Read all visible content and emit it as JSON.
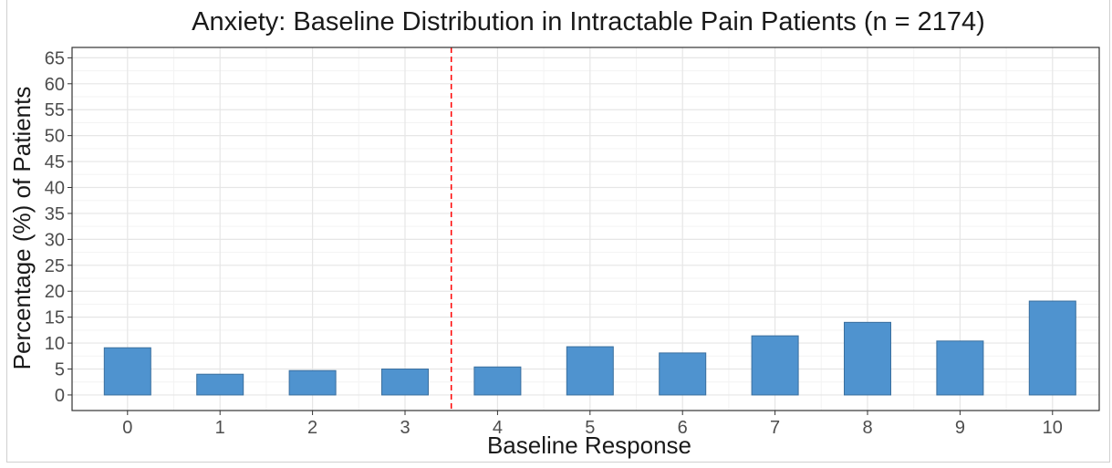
{
  "chart_data": {
    "type": "bar",
    "title": "Anxiety: Baseline Distribution in Intractable Pain Patients (n = 2174)",
    "xlabel": "Baseline Response",
    "ylabel": "Percentage (%) of Patients",
    "categories": [
      "0",
      "1",
      "2",
      "3",
      "4",
      "5",
      "6",
      "7",
      "8",
      "9",
      "10"
    ],
    "values": [
      9.1,
      4.0,
      4.7,
      5.0,
      5.4,
      9.3,
      8.1,
      11.4,
      14.0,
      10.4,
      18.1
    ],
    "ylim": [
      -3,
      67
    ],
    "yticks": [
      0,
      5,
      10,
      15,
      20,
      25,
      30,
      35,
      40,
      45,
      50,
      55,
      60,
      65
    ],
    "reference_line": {
      "after_category": "3",
      "color": "#ff0000",
      "style": "dashed"
    },
    "bar_color": "#4f93cf",
    "bar_edge_color": "#3a6f9e",
    "grid": true,
    "legend": "none"
  }
}
